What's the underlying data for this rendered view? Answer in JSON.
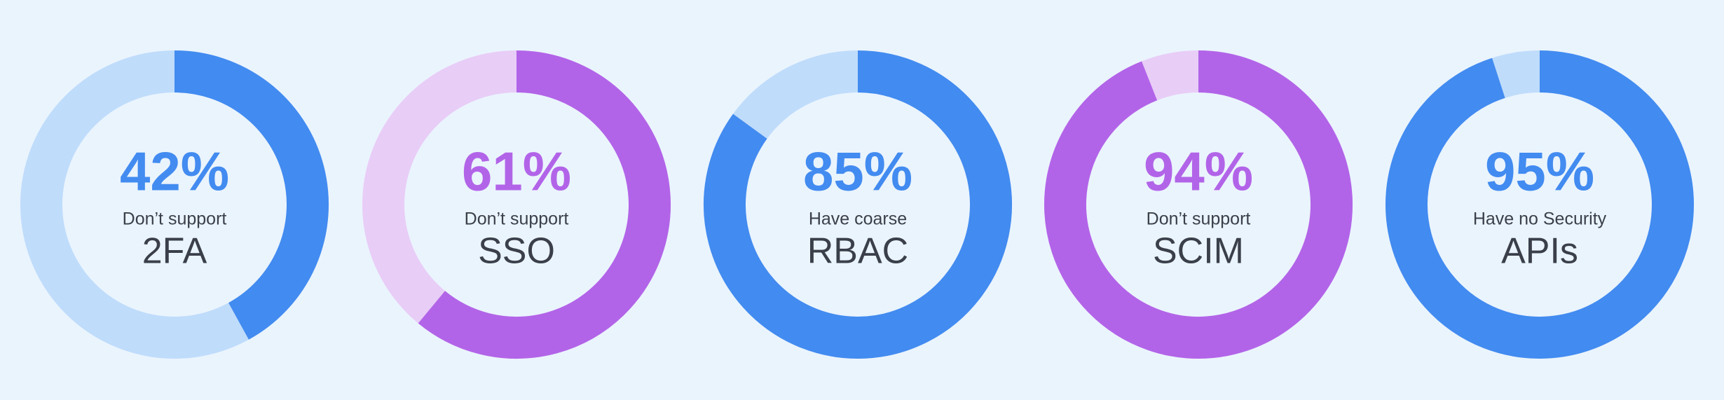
{
  "chart_data": [
    {
      "type": "donut",
      "values": [
        42
      ],
      "value_labels": [
        "42%"
      ],
      "subtitle": "Don’t support",
      "title": "2FA",
      "color": "#428bf0",
      "track_color": "#bfdcfb",
      "ylim": [
        0,
        100
      ]
    },
    {
      "type": "donut",
      "values": [
        61
      ],
      "value_labels": [
        "61%"
      ],
      "subtitle": "Don’t support",
      "title": "SSO",
      "color": "#b264e8",
      "track_color": "#e8cdf7",
      "ylim": [
        0,
        100
      ]
    },
    {
      "type": "donut",
      "values": [
        85
      ],
      "value_labels": [
        "85%"
      ],
      "subtitle": "Have coarse",
      "title": "RBAC",
      "color": "#428bf0",
      "track_color": "#bfdcfb",
      "ylim": [
        0,
        100
      ]
    },
    {
      "type": "donut",
      "values": [
        94
      ],
      "value_labels": [
        "94%"
      ],
      "subtitle": "Don’t support",
      "title": "SCIM",
      "color": "#b264e8",
      "track_color": "#e8cdf7",
      "ylim": [
        0,
        100
      ]
    },
    {
      "type": "donut",
      "values": [
        95
      ],
      "value_labels": [
        "95%"
      ],
      "subtitle": "Have no Security",
      "title": "APIs",
      "color": "#428bf0",
      "track_color": "#bfdcfb",
      "ylim": [
        0,
        100
      ]
    }
  ]
}
